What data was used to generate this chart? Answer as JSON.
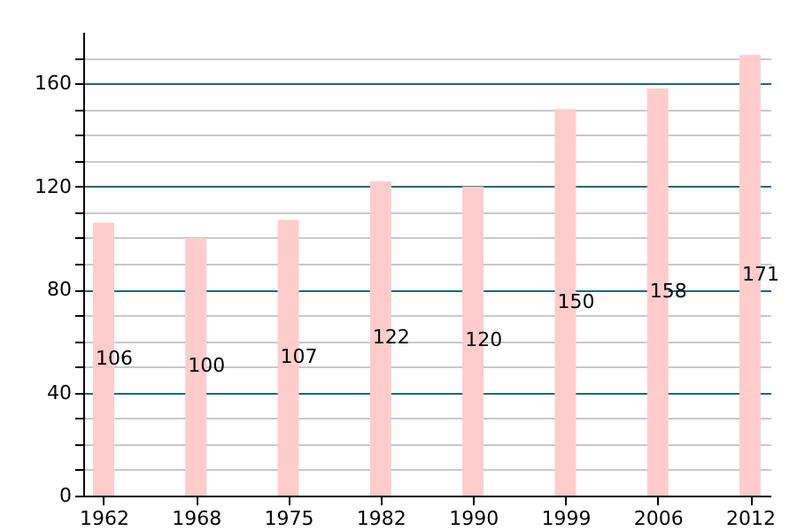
{
  "chart_data": {
    "type": "bar",
    "categories": [
      "1962",
      "1968",
      "1975",
      "1982",
      "1990",
      "1999",
      "2006",
      "2012"
    ],
    "values": [
      106,
      100,
      107,
      122,
      120,
      150,
      158,
      171
    ],
    "color": "#ffcccc",
    "data_labels": true,
    "ylim": [
      0,
      180
    ],
    "yticks": [
      0,
      {
        "value": 10,
        "label": null
      },
      {
        "value": 20,
        "label": null
      },
      {
        "value": 30,
        "label": null
      },
      40,
      {
        "value": 50,
        "label": null
      },
      {
        "value": 60,
        "label": null
      },
      {
        "value": 70,
        "label": null
      },
      80,
      {
        "value": 90,
        "label": null
      },
      {
        "value": 100,
        "label": null
      },
      {
        "value": 110,
        "label": null
      },
      120,
      {
        "value": 130,
        "label": null
      },
      {
        "value": 140,
        "label": null
      },
      {
        "value": 150,
        "label": null
      },
      160,
      {
        "value": 170,
        "label": null
      }
    ],
    "grid": true
  }
}
